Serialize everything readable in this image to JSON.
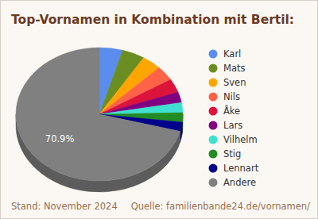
{
  "chart_data": {
    "type": "pie",
    "title": "Top-Vornamen in Kombination mit Bertil:",
    "categories": [
      "Karl",
      "Mats",
      "Sven",
      "Nils",
      "Åke",
      "Lars",
      "Vilhelm",
      "Stig",
      "Lennart",
      "Andere"
    ],
    "values": [
      4.5,
      4.4,
      3.8,
      3.6,
      3.3,
      2.6,
      2.4,
      2.3,
      2.2,
      70.9
    ],
    "value_labels": [
      null,
      null,
      null,
      null,
      null,
      null,
      null,
      null,
      null,
      "70.9%"
    ],
    "colors": [
      "#5b8def",
      "#6b8e23",
      "#ffa500",
      "#ff6347",
      "#dc143c",
      "#800080",
      "#40e0d0",
      "#228b22",
      "#00008b",
      "#808080"
    ],
    "legend": "right",
    "annotations": [
      "Stand: November 2024",
      "Quelle: familienbande24.de/vornamen/"
    ]
  }
}
